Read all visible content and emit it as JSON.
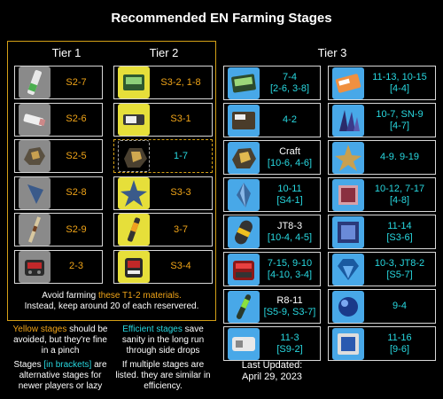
{
  "title": "Recommended EN Farming Stages",
  "tiers": {
    "t1": "Tier 1",
    "t2": "Tier 2",
    "t3": "Tier 3"
  },
  "tier1": [
    {
      "icon": "battery-icon",
      "stage": "S2-7"
    },
    {
      "icon": "usb-key-icon",
      "stage": "S2-6"
    },
    {
      "icon": "ore-rock-icon",
      "stage": "S2-5"
    },
    {
      "icon": "blue-crystal-icon",
      "stage": "S2-8"
    },
    {
      "icon": "rod-icon",
      "stage": "S2-9"
    },
    {
      "icon": "red-device-icon",
      "stage": "2-3"
    }
  ],
  "tier2": [
    {
      "icon": "green-box-icon",
      "stage": "S3-2, 1-8",
      "color": "orange"
    },
    {
      "icon": "usb-drive-icon",
      "stage": "S3-1",
      "color": "orange"
    },
    {
      "icon": "ore-chunk-icon",
      "stage": "1-7",
      "color": "cyan"
    },
    {
      "icon": "star-crystal-icon",
      "stage": "S3-3",
      "color": "orange"
    },
    {
      "icon": "syringe-icon",
      "stage": "3-7",
      "color": "orange"
    },
    {
      "icon": "red-machine-icon",
      "stage": "S3-4",
      "color": "orange"
    }
  ],
  "tier3_left": [
    {
      "icon": "green-case-icon",
      "stage": "7-4",
      "alt": "[2-6, 3-8]",
      "color": "cyan"
    },
    {
      "icon": "notebook-icon",
      "stage": "4-2",
      "alt": "",
      "color": "cyan"
    },
    {
      "icon": "ore-cluster-icon",
      "stage": "Craft",
      "alt": "[10-6, 4-6]",
      "color": "white"
    },
    {
      "icon": "crystal-shard-icon",
      "stage": "10-11",
      "alt": "[S4-1]",
      "color": "cyan"
    },
    {
      "icon": "capsule-icon",
      "stage": "JT8-3",
      "alt": "[10-4, 4-5]",
      "color": "white"
    },
    {
      "icon": "red-generator-icon",
      "stage": "7-15, 9-10",
      "alt": "[4-10, 3-4]",
      "color": "cyan"
    },
    {
      "icon": "green-tube-icon",
      "stage": "R8-11",
      "alt": "[S5-9, S3-7]",
      "color": "white"
    },
    {
      "icon": "white-device-icon",
      "stage": "11-3",
      "alt": "[S9-2]",
      "color": "cyan"
    }
  ],
  "tier3_right": [
    {
      "icon": "card-icon",
      "stage": "11-13, 10-15",
      "alt": "[4-4]",
      "color": "cyan"
    },
    {
      "icon": "blue-crystals-icon",
      "stage": "10-7, SN-9",
      "alt": "[4-7]",
      "color": "cyan"
    },
    {
      "icon": "gold-star-icon",
      "stage": "4-9. 9-19",
      "alt": "",
      "color": "cyan"
    },
    {
      "icon": "pink-crate-icon",
      "stage": "10-12, 7-17",
      "alt": "[4-8]",
      "color": "cyan"
    },
    {
      "icon": "blue-cube-icon",
      "stage": "11-14",
      "alt": "[S3-6]",
      "color": "cyan"
    },
    {
      "icon": "blue-gem-icon",
      "stage": "10-3, JT8-2",
      "alt": "[S5-7]",
      "color": "cyan"
    },
    {
      "icon": "blue-sphere-icon",
      "stage": "9-4",
      "alt": "",
      "color": "cyan"
    },
    {
      "icon": "blue-panel-icon",
      "stage": "11-16",
      "alt": "[9-6]",
      "color": "cyan"
    }
  ],
  "avoid_note": {
    "pre": "Avoid farming ",
    "highlight": "these T1-2 materials.",
    "line2": "Instead, keep around 20 of each reservered."
  },
  "legend": {
    "yellow_title": "Yellow stages",
    "yellow_rest": " should be avoided, but they're fine in a pinch",
    "efficient_title": "Efficient stages",
    "efficient_rest": " save sanity in the long run through side drops",
    "brackets_pre": "Stages ",
    "brackets_highlight": "[in brackets]",
    "brackets_rest": " are alternative stages for newer players or lazy",
    "multiple": "If multiple stages are listed. they are similar in efficiency."
  },
  "updated": {
    "label": "Last Updated:",
    "date": "April 29, 2023"
  },
  "colors": {
    "orange": "#f0a418",
    "cyan": "#28d8e0",
    "gold_border": "#d4a017"
  }
}
